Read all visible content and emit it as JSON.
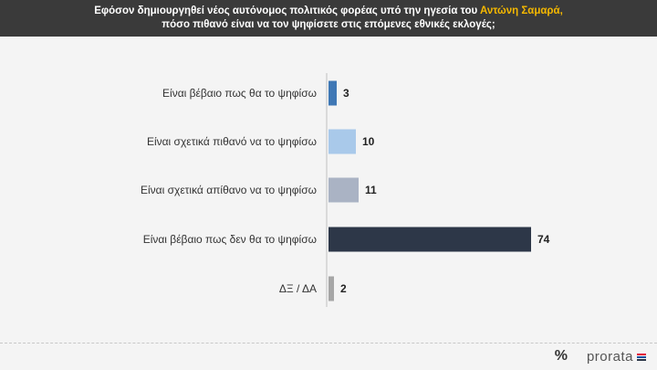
{
  "header": {
    "line1_before": "Εφόσον δημιουργηθεί νέος αυτόνομος πολιτικός φορέας υπό την ηγεσία του ",
    "line1_highlight": "Αντώνη Σαμαρά,",
    "line2": "πόσο πιθανό είναι να τον ψηφίσετε στις επόμενες εθνικές εκλογές;",
    "highlight_color": "#f5b800",
    "background": "#3a3a3a"
  },
  "chart_data": {
    "type": "bar",
    "orientation": "horizontal",
    "categories": [
      "Είναι βέβαιο πως θα το ψηφίσω",
      "Είναι σχετικά πιθανό να το ψηφίσω",
      "Είναι σχετικά απίθανο να το ψηφίσω",
      "Είναι βέβαιο πως δεν θα το ψηφίσω",
      "ΔΞ / ΔΑ"
    ],
    "values": [
      3,
      10,
      11,
      74,
      2
    ],
    "colors": [
      "#3f78b5",
      "#a9c9ea",
      "#aab3c4",
      "#2d3748",
      "#a6a6a6"
    ],
    "title": "",
    "xlabel": "",
    "ylabel": "",
    "xlim": [
      0,
      100
    ],
    "grid": false,
    "legend": "none"
  },
  "footer": {
    "brand": "prorata",
    "icon": "percent-icon",
    "brand_colors": [
      "#e4003a",
      "#1a4f9c",
      "#2d3748"
    ]
  }
}
